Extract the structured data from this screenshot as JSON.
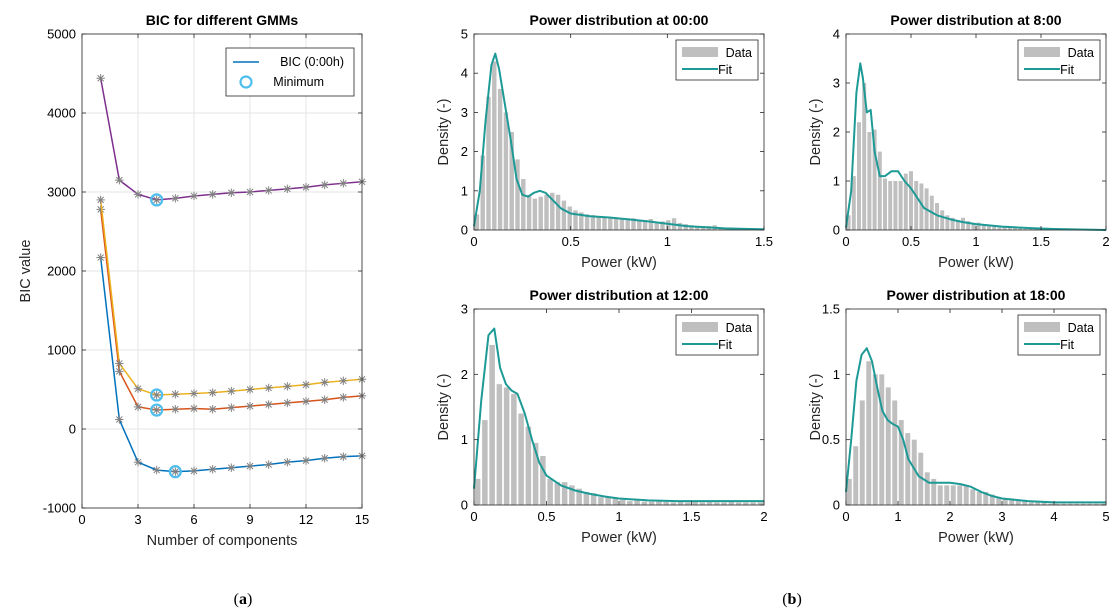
{
  "panel_labels": {
    "a": "a",
    "b": "b"
  },
  "chart_data": [
    {
      "id": "bic",
      "type": "line",
      "title": "BIC for different GMMs",
      "xlabel": "Number of components",
      "ylabel": "BIC value",
      "xlim": [
        0,
        15
      ],
      "ylim": [
        -1000,
        5000
      ],
      "xticks": [
        0,
        3,
        6,
        9,
        12,
        15
      ],
      "yticks": [
        -1000,
        0,
        1000,
        2000,
        3000,
        4000,
        5000
      ],
      "grid": true,
      "legend_position": "top-right",
      "legend": [
        "BIC (0:00h)",
        "Minimum"
      ],
      "x": [
        1,
        2,
        3,
        4,
        5,
        6,
        7,
        8,
        9,
        10,
        11,
        12,
        13,
        14,
        15
      ],
      "series": [
        {
          "color": "#0072BD",
          "values": [
            2170,
            120,
            -420,
            -520,
            -540,
            -530,
            -510,
            -490,
            -470,
            -450,
            -420,
            -400,
            -370,
            -350,
            -340
          ],
          "min_index": 4
        },
        {
          "color": "#D95319",
          "values": [
            2780,
            730,
            280,
            240,
            250,
            260,
            250,
            270,
            290,
            310,
            330,
            350,
            370,
            400,
            420
          ],
          "min_index": 3
        },
        {
          "color": "#EDB120",
          "values": [
            2900,
            830,
            510,
            430,
            440,
            450,
            460,
            480,
            500,
            520,
            540,
            560,
            590,
            610,
            630
          ],
          "min_index": 3
        },
        {
          "color": "#7E2F8E",
          "values": [
            4440,
            3150,
            2970,
            2900,
            2920,
            2950,
            2970,
            2990,
            3000,
            3020,
            3040,
            3060,
            3090,
            3110,
            3130
          ],
          "min_index": 3
        }
      ],
      "marker_color": "#808080",
      "minimum_color": "#4DBEEE"
    },
    {
      "id": "p0",
      "type": "bar",
      "title": "Power distribution at 00:00",
      "xlabel": "Power (kW)",
      "ylabel": "Density (-)",
      "xlim": [
        0,
        1.5
      ],
      "ylim": [
        0,
        5
      ],
      "xticks": [
        0,
        0.5,
        1,
        1.5
      ],
      "yticks": [
        0,
        1,
        2,
        3,
        4,
        5
      ],
      "legend_position": "top-right",
      "legend": [
        "Data",
        "Fit"
      ],
      "bin_width": 0.03,
      "values": [
        0.4,
        1.9,
        3.4,
        4.3,
        3.6,
        3.0,
        2.5,
        1.8,
        1.3,
        0.9,
        0.8,
        0.85,
        0.9,
        0.95,
        0.9,
        0.75,
        0.6,
        0.5,
        0.45,
        0.4,
        0.38,
        0.35,
        0.33,
        0.32,
        0.3,
        0.28,
        0.3,
        0.3,
        0.26,
        0.25,
        0.28,
        0.2,
        0.22,
        0.25,
        0.3,
        0.18,
        0.15,
        0.12,
        0.1,
        0.1,
        0.1,
        0.12,
        0.06,
        0.05,
        0.04,
        0.03,
        0.02,
        0.02,
        0.01,
        0.01
      ],
      "fit_x": [
        0,
        0.03,
        0.06,
        0.09,
        0.11,
        0.13,
        0.16,
        0.19,
        0.22,
        0.25,
        0.28,
        0.31,
        0.34,
        0.37,
        0.4,
        0.45,
        0.5,
        0.6,
        0.7,
        0.8,
        0.9,
        1.0,
        1.1,
        1.2,
        1.3,
        1.4,
        1.5
      ],
      "fit_y": [
        0.1,
        1.0,
        2.8,
        4.2,
        4.5,
        4.1,
        3.2,
        2.3,
        1.3,
        0.9,
        0.85,
        0.95,
        1.0,
        0.95,
        0.8,
        0.55,
        0.42,
        0.35,
        0.32,
        0.27,
        0.22,
        0.16,
        0.1,
        0.07,
        0.04,
        0.03,
        0.02
      ]
    },
    {
      "id": "p8",
      "type": "bar",
      "title": "Power distribution at 8:00",
      "xlabel": "Power (kW)",
      "ylabel": "Density (-)",
      "xlim": [
        0,
        2
      ],
      "ylim": [
        0,
        4
      ],
      "xticks": [
        0,
        0.5,
        1,
        1.5,
        2
      ],
      "yticks": [
        0,
        1,
        2,
        3,
        4
      ],
      "legend_position": "top-right",
      "legend": [
        "Data",
        "Fit"
      ],
      "bin_width": 0.04,
      "values": [
        0.3,
        1.1,
        2.2,
        3.0,
        2.0,
        2.05,
        1.6,
        1.05,
        1.0,
        1.0,
        1.0,
        1.15,
        1.2,
        1.0,
        0.95,
        0.85,
        0.7,
        0.55,
        0.4,
        0.3,
        0.25,
        0.2,
        0.25,
        0.18,
        0.12,
        0.15,
        0.12,
        0.1,
        0.08,
        0.05,
        0.06,
        0.05,
        0.04,
        0.03,
        0.02,
        0.02,
        0.02,
        0.01,
        0.01,
        0.01
      ],
      "fit_x": [
        0,
        0.04,
        0.08,
        0.11,
        0.13,
        0.16,
        0.19,
        0.22,
        0.26,
        0.3,
        0.35,
        0.4,
        0.45,
        0.5,
        0.55,
        0.6,
        0.7,
        0.8,
        0.9,
        1.0,
        1.2,
        1.4,
        1.6,
        1.8,
        2.0
      ],
      "fit_y": [
        0.05,
        0.8,
        2.8,
        3.4,
        3.1,
        2.4,
        2.45,
        1.6,
        1.1,
        1.1,
        1.2,
        1.2,
        1.0,
        0.85,
        0.65,
        0.45,
        0.3,
        0.22,
        0.16,
        0.12,
        0.07,
        0.04,
        0.02,
        0.01,
        0.0
      ]
    },
    {
      "id": "p12",
      "type": "bar",
      "title": "Power distribution at 12:00",
      "xlabel": "Power (kW)",
      "ylabel": "Density (-)",
      "xlim": [
        0,
        2
      ],
      "ylim": [
        0,
        3
      ],
      "xticks": [
        0,
        0.5,
        1,
        1.5,
        2
      ],
      "yticks": [
        0,
        1,
        2,
        3
      ],
      "legend_position": "top-right",
      "legend": [
        "Data",
        "Fit"
      ],
      "bin_width": 0.05,
      "values": [
        0.4,
        1.3,
        2.45,
        1.85,
        1.8,
        1.7,
        1.4,
        1.2,
        0.95,
        0.75,
        0.4,
        0.35,
        0.35,
        0.3,
        0.25,
        0.2,
        0.18,
        0.12,
        0.12,
        0.1,
        0.08,
        0.06,
        0.08,
        0.05,
        0.05,
        0.06,
        0.05,
        0.04,
        0.05,
        0.04,
        0.05,
        0.04,
        0.05,
        0.04,
        0.04,
        0.05,
        0.04,
        0.04,
        0.04,
        0.04
      ],
      "fit_x": [
        0,
        0.05,
        0.1,
        0.14,
        0.18,
        0.22,
        0.26,
        0.3,
        0.35,
        0.4,
        0.45,
        0.5,
        0.6,
        0.7,
        0.8,
        0.9,
        1.0,
        1.2,
        1.4,
        1.6,
        1.8,
        2.0
      ],
      "fit_y": [
        0.25,
        1.6,
        2.6,
        2.7,
        2.1,
        1.85,
        1.75,
        1.7,
        1.4,
        1.0,
        0.65,
        0.45,
        0.3,
        0.22,
        0.17,
        0.13,
        0.1,
        0.07,
        0.06,
        0.06,
        0.06,
        0.06
      ]
    },
    {
      "id": "p18",
      "type": "bar",
      "title": "Power distribution at 18:00",
      "xlabel": "Power (kW)",
      "ylabel": "Density (-)",
      "xlim": [
        0,
        5
      ],
      "ylim": [
        0,
        1.5
      ],
      "xticks": [
        0,
        1,
        2,
        3,
        4,
        5
      ],
      "yticks": [
        0,
        0.5,
        1,
        1.5
      ],
      "legend_position": "top-right",
      "legend": [
        "Data",
        "Fit"
      ],
      "bin_width": 0.125,
      "values": [
        0.2,
        0.45,
        0.8,
        1.1,
        1.0,
        1.0,
        0.9,
        0.8,
        0.65,
        0.55,
        0.5,
        0.4,
        0.25,
        0.2,
        0.15,
        0.15,
        0.15,
        0.15,
        0.15,
        0.12,
        0.1,
        0.1,
        0.08,
        0.06,
        0.05,
        0.05,
        0.04,
        0.03,
        0.02,
        0.02,
        0.02,
        0.01,
        0.01,
        0.01,
        0.01,
        0.01,
        0.01,
        0.01,
        0.01,
        0.01
      ],
      "fit_x": [
        0,
        0.1,
        0.2,
        0.3,
        0.4,
        0.5,
        0.6,
        0.7,
        0.8,
        0.9,
        1.0,
        1.1,
        1.2,
        1.4,
        1.6,
        1.8,
        2.0,
        2.2,
        2.4,
        2.6,
        2.8,
        3.0,
        3.5,
        4.0,
        4.5,
        5.0
      ],
      "fit_y": [
        0.1,
        0.5,
        0.95,
        1.15,
        1.2,
        1.1,
        0.9,
        0.72,
        0.65,
        0.62,
        0.6,
        0.5,
        0.35,
        0.22,
        0.17,
        0.17,
        0.17,
        0.16,
        0.14,
        0.1,
        0.07,
        0.05,
        0.03,
        0.02,
        0.02,
        0.02
      ]
    }
  ]
}
